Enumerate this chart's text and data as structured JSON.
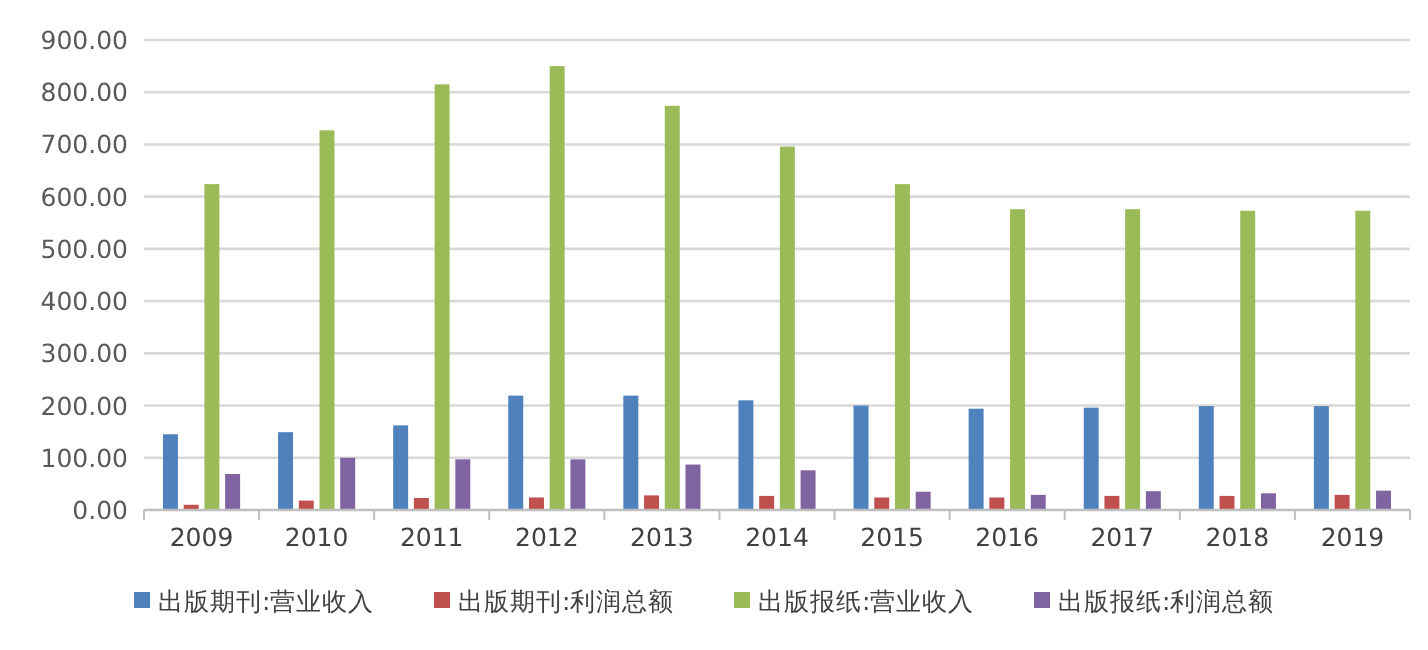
{
  "chart_data": {
    "type": "bar",
    "categories": [
      "2009",
      "2010",
      "2011",
      "2012",
      "2013",
      "2014",
      "2015",
      "2016",
      "2017",
      "2018",
      "2019"
    ],
    "series": [
      {
        "name": "出版期刊:营业收入",
        "color": "#4f81bd",
        "values": [
          145,
          149,
          162,
          219,
          219,
          210,
          200,
          194,
          196,
          199,
          199
        ]
      },
      {
        "name": "出版期刊:利润总额",
        "color": "#c0504d",
        "values": [
          10,
          18,
          23,
          24,
          28,
          27,
          24,
          24,
          27,
          27,
          29
        ]
      },
      {
        "name": "出版报纸:营业收入",
        "color": "#9bbb59",
        "values": [
          624,
          727,
          815,
          850,
          774,
          696,
          624,
          576,
          576,
          573,
          573
        ]
      },
      {
        "name": "出版报纸:利润总额",
        "color": "#8064a2",
        "values": [
          69,
          100,
          97,
          97,
          87,
          76,
          35,
          29,
          36,
          32,
          37
        ]
      }
    ],
    "ylim": [
      0,
      900
    ],
    "yticks": [
      {
        "value": 0,
        "label": "0.00"
      },
      {
        "value": 100,
        "label": "100.00"
      },
      {
        "value": 200,
        "label": "200.00"
      },
      {
        "value": 300,
        "label": "300.00"
      },
      {
        "value": 400,
        "label": "400.00"
      },
      {
        "value": 500,
        "label": "500.00"
      },
      {
        "value": 600,
        "label": "600.00"
      },
      {
        "value": 700,
        "label": "700.00"
      },
      {
        "value": 800,
        "label": "800.00"
      },
      {
        "value": 900,
        "label": "900.00"
      }
    ],
    "grid": "y",
    "legend": "bottom"
  }
}
